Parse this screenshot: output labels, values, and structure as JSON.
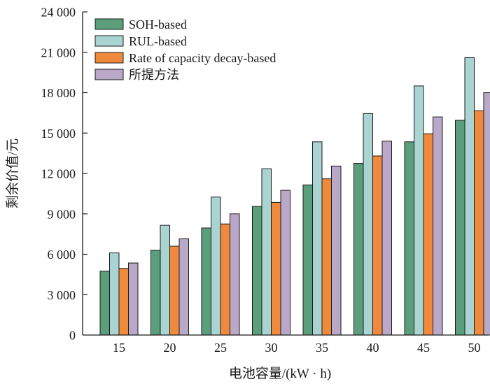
{
  "chart_data": {
    "type": "bar",
    "title": "",
    "xlabel": "电池容量/(kW · h)",
    "ylabel": "剩余价值/元",
    "ylim": [
      0,
      24000
    ],
    "yticks": [
      "0",
      "3 000",
      "6 000",
      "9 000",
      "12 000",
      "15 000",
      "18 000",
      "21 000",
      "24 000"
    ],
    "ytick_values": [
      0,
      3000,
      6000,
      9000,
      12000,
      15000,
      18000,
      21000,
      24000
    ],
    "categories": [
      "15",
      "20",
      "25",
      "30",
      "35",
      "40",
      "45",
      "50"
    ],
    "grid": false,
    "legend_position": "top-left",
    "series": [
      {
        "name": "SOH-based",
        "color": "#5b9e7c",
        "values": [
          4750,
          6300,
          7950,
          9550,
          11150,
          12750,
          14350,
          15950
        ]
      },
      {
        "name": "RUL-based",
        "color": "#a9d4d1",
        "values": [
          6100,
          8150,
          10250,
          12350,
          14350,
          16450,
          18500,
          20600
        ]
      },
      {
        "name": "Rate of capacity decay-based",
        "color": "#ef8a3c",
        "values": [
          4950,
          6600,
          8250,
          9850,
          11600,
          13300,
          14950,
          16650
        ]
      },
      {
        "name": "所提方法",
        "color": "#b9a8c8",
        "values": [
          5350,
          7150,
          9000,
          10750,
          12550,
          14400,
          16200,
          18000
        ]
      }
    ]
  }
}
